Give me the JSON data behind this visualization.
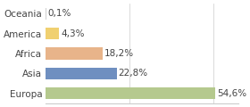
{
  "categories": [
    "Oceania",
    "America",
    "Africa",
    "Asia",
    "Europa"
  ],
  "values": [
    0.1,
    4.3,
    18.2,
    22.8,
    54.6
  ],
  "labels": [
    "0,1%",
    "4,3%",
    "18,2%",
    "22,8%",
    "54,6%"
  ],
  "bar_colors": [
    "#d0d0d0",
    "#f0d070",
    "#e8b48a",
    "#6f8fc0",
    "#b5c98e"
  ],
  "background_color": "#ffffff",
  "xlim": [
    0,
    62
  ],
  "label_fontsize": 7.5,
  "tick_fontsize": 7.5,
  "grid_lines": [
    27,
    54
  ]
}
